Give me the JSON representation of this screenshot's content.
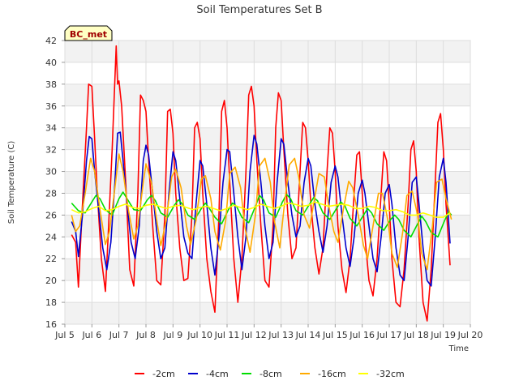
{
  "chart_data": {
    "type": "line",
    "title": "Soil Temperatures Set B",
    "xlabel": "Time",
    "ylabel": "Soil Temperature (C)",
    "station_label": "BC_met",
    "xlim": [
      5,
      20
    ],
    "ylim": [
      16,
      42
    ],
    "x_ticks": [
      5,
      6,
      7,
      8,
      9,
      10,
      11,
      12,
      13,
      14,
      15,
      16,
      17,
      18,
      19,
      20
    ],
    "x_tick_labels": [
      "Jul 5",
      "Jul 6",
      "Jul 7",
      "Jul 8",
      "Jul 9",
      "Jul 10",
      "Jul 11",
      "Jul 12",
      "Jul 13",
      "Jul 14",
      "Jul 15",
      "Jul 16",
      "Jul 17",
      "Jul 18",
      "Jul 19",
      "Jul 20"
    ],
    "y_ticks": [
      16,
      18,
      20,
      22,
      24,
      26,
      28,
      30,
      32,
      34,
      36,
      38,
      40,
      42
    ],
    "y_tick_labels": [
      "16",
      "18",
      "20",
      "22",
      "24",
      "26",
      "28",
      "30",
      "32",
      "34",
      "36",
      "38",
      "40",
      "42"
    ],
    "grid": true,
    "legend_position": "bottom",
    "series": [
      {
        "name": "-2cm",
        "color": "#ff0000",
        "x": [
          5.25,
          5.4,
          5.5,
          5.65,
          5.8,
          5.88,
          6.0,
          6.1,
          6.2,
          6.35,
          6.5,
          6.6,
          6.75,
          6.9,
          6.95,
          7.0,
          7.1,
          7.25,
          7.4,
          7.55,
          7.7,
          7.8,
          7.9,
          8.0,
          8.1,
          8.25,
          8.4,
          8.55,
          8.7,
          8.8,
          8.9,
          9.0,
          9.1,
          9.25,
          9.4,
          9.55,
          9.7,
          9.8,
          9.9,
          10.0,
          10.1,
          10.25,
          10.4,
          10.55,
          10.7,
          10.8,
          10.9,
          11.0,
          11.1,
          11.25,
          11.4,
          11.55,
          11.7,
          11.8,
          11.9,
          12.0,
          12.1,
          12.25,
          12.4,
          12.55,
          12.7,
          12.8,
          12.9,
          13.0,
          13.1,
          13.25,
          13.4,
          13.55,
          13.7,
          13.8,
          13.9,
          14.0,
          14.1,
          14.25,
          14.4,
          14.55,
          14.7,
          14.8,
          14.9,
          15.0,
          15.1,
          15.25,
          15.4,
          15.55,
          15.7,
          15.8,
          15.9,
          16.0,
          16.1,
          16.25,
          16.4,
          16.55,
          16.7,
          16.8,
          16.9,
          17.0,
          17.1,
          17.25,
          17.4,
          17.55,
          17.7,
          17.8,
          17.9,
          18.0,
          18.1,
          18.25,
          18.4,
          18.55,
          18.7,
          18.8,
          18.9,
          19.0,
          19.1,
          19.25
        ],
        "y": [
          24.2,
          23.5,
          19.4,
          27.0,
          34.0,
          38.0,
          37.8,
          33.0,
          28.0,
          22.0,
          19.0,
          24.0,
          32.0,
          41.5,
          38.0,
          38.3,
          36.0,
          29.0,
          21.0,
          19.5,
          28.0,
          37.0,
          36.5,
          35.5,
          31.0,
          25.0,
          20.0,
          19.6,
          26.0,
          35.5,
          35.7,
          33.5,
          28.0,
          23.0,
          20.0,
          20.2,
          26.0,
          34.0,
          34.5,
          33.0,
          28.0,
          22.0,
          19.0,
          17.1,
          26.0,
          35.5,
          36.5,
          34.0,
          29.0,
          22.0,
          18.0,
          22.0,
          30.0,
          37.0,
          37.8,
          36.0,
          31.0,
          25.0,
          20.0,
          19.4,
          25.0,
          34.0,
          37.2,
          36.5,
          32.0,
          26.0,
          22.0,
          23.0,
          30.0,
          34.5,
          34.0,
          31.0,
          27.0,
          23.0,
          20.6,
          23.0,
          30.0,
          34.0,
          33.5,
          30.0,
          25.0,
          21.0,
          18.9,
          22.0,
          28.0,
          31.5,
          31.8,
          28.0,
          24.0,
          20.0,
          18.6,
          22.0,
          28.0,
          31.8,
          31.0,
          27.0,
          22.0,
          18.0,
          17.6,
          21.0,
          27.0,
          32.0,
          32.8,
          30.0,
          24.0,
          18.0,
          16.3,
          21.0,
          29.0,
          34.5,
          35.3,
          32.0,
          27.0,
          21.4
        ]
      },
      {
        "name": "-4cm",
        "color": "#0000cc",
        "x": [
          5.25,
          5.4,
          5.5,
          5.65,
          5.8,
          5.9,
          6.0,
          6.1,
          6.25,
          6.4,
          6.55,
          6.7,
          6.85,
          6.95,
          7.05,
          7.15,
          7.3,
          7.45,
          7.6,
          7.75,
          7.9,
          8.0,
          8.1,
          8.25,
          8.4,
          8.55,
          8.7,
          8.85,
          9.0,
          9.1,
          9.25,
          9.4,
          9.55,
          9.7,
          9.85,
          10.0,
          10.1,
          10.25,
          10.4,
          10.55,
          10.7,
          10.85,
          11.0,
          11.1,
          11.25,
          11.4,
          11.55,
          11.7,
          11.85,
          12.0,
          12.1,
          12.25,
          12.4,
          12.55,
          12.7,
          12.85,
          13.0,
          13.1,
          13.25,
          13.4,
          13.55,
          13.7,
          13.85,
          14.0,
          14.1,
          14.25,
          14.4,
          14.55,
          14.7,
          14.85,
          15.0,
          15.1,
          15.25,
          15.4,
          15.55,
          15.7,
          15.85,
          16.0,
          16.1,
          16.25,
          16.4,
          16.55,
          16.7,
          16.85,
          17.0,
          17.1,
          17.25,
          17.4,
          17.55,
          17.7,
          17.85,
          18.0,
          18.1,
          18.25,
          18.4,
          18.55,
          18.7,
          18.85,
          19.0,
          19.1,
          19.25
        ],
        "y": [
          25.4,
          24.5,
          22.2,
          26.0,
          31.0,
          33.2,
          33.0,
          30.0,
          26.5,
          23.0,
          21.0,
          23.5,
          29.0,
          33.5,
          33.6,
          31.0,
          27.0,
          23.5,
          22.0,
          25.0,
          31.0,
          32.4,
          31.5,
          28.0,
          24.5,
          22.0,
          23.0,
          28.0,
          31.8,
          31.0,
          27.5,
          24.0,
          22.5,
          22.0,
          27.0,
          31.0,
          30.5,
          27.0,
          23.0,
          20.5,
          24.0,
          29.0,
          32.0,
          31.8,
          28.0,
          24.0,
          21.0,
          24.0,
          30.0,
          33.3,
          32.5,
          29.0,
          25.0,
          22.0,
          23.5,
          29.0,
          33.0,
          32.5,
          29.0,
          26.0,
          24.0,
          25.0,
          29.0,
          31.2,
          30.5,
          27.0,
          24.5,
          22.6,
          25.0,
          29.0,
          30.5,
          29.5,
          26.0,
          23.0,
          21.3,
          24.0,
          28.0,
          29.2,
          28.0,
          25.0,
          22.0,
          20.8,
          24.0,
          28.0,
          28.8,
          27.0,
          23.0,
          20.5,
          20.0,
          24.0,
          29.0,
          29.5,
          27.0,
          23.0,
          20.0,
          19.5,
          24.0,
          29.5,
          31.2,
          29.0,
          23.4
        ]
      },
      {
        "name": "-8cm",
        "color": "#00dd00",
        "x": [
          5.25,
          5.5,
          5.75,
          6.0,
          6.15,
          6.3,
          6.5,
          6.75,
          7.0,
          7.15,
          7.3,
          7.55,
          7.8,
          8.05,
          8.2,
          8.35,
          8.55,
          8.8,
          9.05,
          9.2,
          9.35,
          9.55,
          9.8,
          10.05,
          10.2,
          10.35,
          10.55,
          10.8,
          11.05,
          11.2,
          11.35,
          11.55,
          11.8,
          12.05,
          12.2,
          12.35,
          12.55,
          12.8,
          13.05,
          13.2,
          13.35,
          13.55,
          13.8,
          14.05,
          14.2,
          14.35,
          14.55,
          14.8,
          15.05,
          15.2,
          15.35,
          15.55,
          15.8,
          16.05,
          16.2,
          16.35,
          16.55,
          16.8,
          17.05,
          17.2,
          17.35,
          17.55,
          17.8,
          18.05,
          18.2,
          18.35,
          18.55,
          18.8,
          19.05,
          19.2,
          19.3
        ],
        "y": [
          27.1,
          26.4,
          26.2,
          27.2,
          27.8,
          27.5,
          26.5,
          26.0,
          27.5,
          28.1,
          27.5,
          26.5,
          26.4,
          27.4,
          27.8,
          27.3,
          26.2,
          25.8,
          26.9,
          27.4,
          27.0,
          26.0,
          25.6,
          26.6,
          27.1,
          26.6,
          25.8,
          25.2,
          26.5,
          27.1,
          26.8,
          25.8,
          25.3,
          26.8,
          27.8,
          27.4,
          26.2,
          25.8,
          27.2,
          27.9,
          27.5,
          26.4,
          26.0,
          27.0,
          27.6,
          27.3,
          26.2,
          25.6,
          26.6,
          27.2,
          26.9,
          25.7,
          25.0,
          26.0,
          26.6,
          26.2,
          25.2,
          24.6,
          25.6,
          26.0,
          25.6,
          24.6,
          24.0,
          25.2,
          25.9,
          25.4,
          24.4,
          24.0,
          25.5,
          26.3,
          26.0
        ]
      },
      {
        "name": "-16cm",
        "color": "#ffaa00",
        "x": [
          5.25,
          5.4,
          5.55,
          5.75,
          5.95,
          6.1,
          6.3,
          6.5,
          6.65,
          6.85,
          7.0,
          7.15,
          7.35,
          7.55,
          7.7,
          7.9,
          8.0,
          8.2,
          8.4,
          8.55,
          8.75,
          8.95,
          9.1,
          9.3,
          9.5,
          9.65,
          9.85,
          10.05,
          10.2,
          10.4,
          10.55,
          10.75,
          10.95,
          11.1,
          11.3,
          11.5,
          11.65,
          11.85,
          12.05,
          12.2,
          12.4,
          12.6,
          12.75,
          12.95,
          13.1,
          13.3,
          13.5,
          13.65,
          13.85,
          14.05,
          14.2,
          14.4,
          14.6,
          14.75,
          14.95,
          15.1,
          15.3,
          15.5,
          15.65,
          15.85,
          16.05,
          16.2,
          16.4,
          16.6,
          16.75,
          16.95,
          17.1,
          17.3,
          17.5,
          17.65,
          17.85,
          18.05,
          18.2,
          18.4,
          18.6,
          18.75,
          18.95,
          19.1,
          19.3
        ],
        "y": [
          26.0,
          24.5,
          25.0,
          28.0,
          31.2,
          30.0,
          26.5,
          23.3,
          24.5,
          28.5,
          31.6,
          30.0,
          26.5,
          23.8,
          25.0,
          29.0,
          30.7,
          29.0,
          25.5,
          23.2,
          25.5,
          29.5,
          30.2,
          28.5,
          25.0,
          23.3,
          25.5,
          29.3,
          29.6,
          27.5,
          24.5,
          22.8,
          25.5,
          29.8,
          30.4,
          28.5,
          25.0,
          22.6,
          26.0,
          30.5,
          31.2,
          29.0,
          25.5,
          23.0,
          26.5,
          30.6,
          31.2,
          29.5,
          26.0,
          24.8,
          27.0,
          29.8,
          29.5,
          27.0,
          24.5,
          23.5,
          26.5,
          29.1,
          28.5,
          26.0,
          23.2,
          22.0,
          25.0,
          28.0,
          28.0,
          25.5,
          22.5,
          21.2,
          24.5,
          27.8,
          28.2,
          26.0,
          22.5,
          21.0,
          25.0,
          29.0,
          29.3,
          27.5,
          25.6
        ]
      },
      {
        "name": "-32cm",
        "color": "#ffff00",
        "x": [
          5.25,
          5.5,
          5.75,
          6.0,
          6.25,
          6.5,
          6.75,
          7.0,
          7.25,
          7.5,
          7.75,
          8.0,
          8.25,
          8.5,
          8.75,
          9.0,
          9.25,
          9.5,
          9.75,
          10.0,
          10.25,
          10.5,
          10.75,
          11.0,
          11.25,
          11.5,
          11.75,
          12.0,
          12.25,
          12.5,
          12.75,
          13.0,
          13.25,
          13.5,
          13.75,
          14.0,
          14.25,
          14.5,
          14.75,
          15.0,
          15.25,
          15.5,
          15.75,
          16.0,
          16.25,
          16.5,
          16.75,
          17.0,
          17.25,
          17.5,
          17.75,
          18.0,
          18.25,
          18.5,
          18.75,
          19.0,
          19.25
        ],
        "y": [
          26.5,
          26.2,
          26.3,
          26.6,
          26.8,
          26.4,
          26.5,
          26.8,
          27.0,
          26.7,
          26.6,
          26.9,
          27.0,
          26.8,
          26.6,
          26.8,
          26.9,
          26.7,
          26.5,
          26.7,
          26.8,
          26.6,
          26.4,
          26.6,
          26.9,
          26.7,
          26.5,
          26.7,
          27.0,
          26.8,
          26.6,
          26.8,
          27.1,
          27.0,
          26.8,
          26.9,
          27.2,
          27.0,
          26.8,
          26.9,
          27.0,
          26.9,
          26.6,
          26.6,
          26.8,
          26.7,
          26.4,
          26.4,
          26.5,
          26.3,
          26.0,
          26.0,
          26.2,
          26.0,
          25.8,
          25.8,
          26.2
        ]
      }
    ]
  }
}
